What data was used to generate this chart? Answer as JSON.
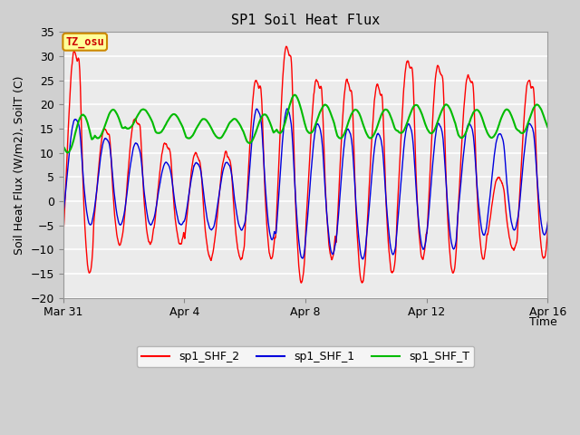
{
  "title": "SP1 Soil Heat Flux",
  "xlabel": "Time",
  "ylabel": "Soil Heat Flux (W/m2), SoilT (C)",
  "ylim": [
    -20,
    35
  ],
  "yticks": [
    -20,
    -15,
    -10,
    -5,
    0,
    5,
    10,
    15,
    20,
    25,
    30,
    35
  ],
  "xtick_labels": [
    "Mar 31",
    "Apr 4",
    "Apr 8",
    "Apr 12",
    "Apr 16"
  ],
  "xtick_positions": [
    0,
    4,
    8,
    12,
    16
  ],
  "plot_bg": "#ebebeb",
  "fig_bg": "#d0d0d0",
  "grid_color": "#ffffff",
  "line_red": "#ff0000",
  "line_blue": "#0000dd",
  "line_green": "#00bb00",
  "legend_items": [
    "sp1_SHF_2",
    "sp1_SHF_1",
    "sp1_SHF_T"
  ],
  "tz_label": "TZ_osu",
  "tz_bg": "#ffff99",
  "tz_border": "#cc8800",
  "tz_text_color": "#cc0000",
  "n_days": 17,
  "points_per_day": 144,
  "title_fontsize": 11,
  "axis_fontsize": 9,
  "tick_fontsize": 9
}
